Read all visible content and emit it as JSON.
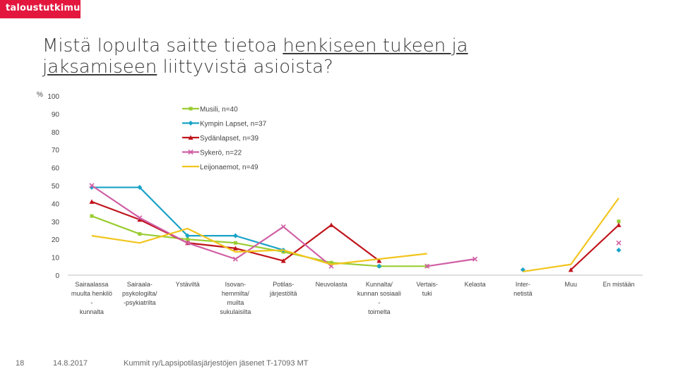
{
  "brand": {
    "logo_text": "taloustutkimus"
  },
  "slide": {
    "title_pre": "Mistä lopulta saitte tietoa ",
    "title_underlined": "henkiseen tukeen ja jaksamiseen",
    "title_post": " liittyvistä asioista?",
    "page_number": "18",
    "date": "14.8.2017",
    "source": "Kummit ry/Lapsipotilasjärjestöjen jäsenet T-17093 MT"
  },
  "chart_data": {
    "type": "line",
    "y_unit_label": "%",
    "ylim": [
      0,
      100
    ],
    "yticks": [
      0,
      10,
      20,
      30,
      40,
      50,
      60,
      70,
      80,
      90,
      100
    ],
    "grid": false,
    "legend_position": "upper-middle",
    "categories": [
      [
        "Sairaalassa",
        "muulta henkilö",
        "-",
        "kunnalta"
      ],
      [
        "Sairaala-",
        "psykologilta/",
        "-psykiatrilta"
      ],
      [
        "Ystäviltä"
      ],
      [
        "Isovan-",
        "hemmilta/",
        "muilta",
        "sukulaisilta"
      ],
      [
        "Potilas-",
        "järjestöltä"
      ],
      [
        "Neuvolasta"
      ],
      [
        "Kunnalta/",
        "kunnan sosiaali",
        "-",
        "toimelta"
      ],
      [
        "Vertais-",
        "tuki"
      ],
      [
        "Kelasta"
      ],
      [
        "Inter-",
        "netistä"
      ],
      [
        "Muu"
      ],
      [
        "En mistään"
      ]
    ],
    "series": [
      {
        "name": "Musili, n=40",
        "color": "#9acd32",
        "marker": "square",
        "values": [
          33,
          23,
          20,
          18,
          13,
          7,
          5,
          5,
          null,
          null,
          null,
          30
        ]
      },
      {
        "name": "Kympin Lapset, n=37",
        "color": "#1aa3c8",
        "marker": "diamond",
        "values": [
          49,
          49,
          22,
          22,
          14,
          null,
          5,
          null,
          null,
          3,
          null,
          14
        ]
      },
      {
        "name": "Sydänlapset, n=39",
        "color": "#c0141c",
        "marker": "triangle",
        "values": [
          41,
          31,
          18,
          15,
          8,
          28,
          8,
          null,
          null,
          null,
          3,
          28
        ]
      },
      {
        "name": "Sykerö, n=22",
        "color": "#d05fa5",
        "marker": "x",
        "values": [
          50,
          32,
          18,
          9,
          27,
          5,
          null,
          5,
          9,
          null,
          null,
          18
        ]
      },
      {
        "name": "Leijonaemot, n=49",
        "color": "#f2c51e",
        "marker": "none",
        "values": [
          22,
          18,
          26,
          13,
          14,
          6,
          9,
          12,
          null,
          2,
          6,
          43
        ]
      }
    ]
  }
}
